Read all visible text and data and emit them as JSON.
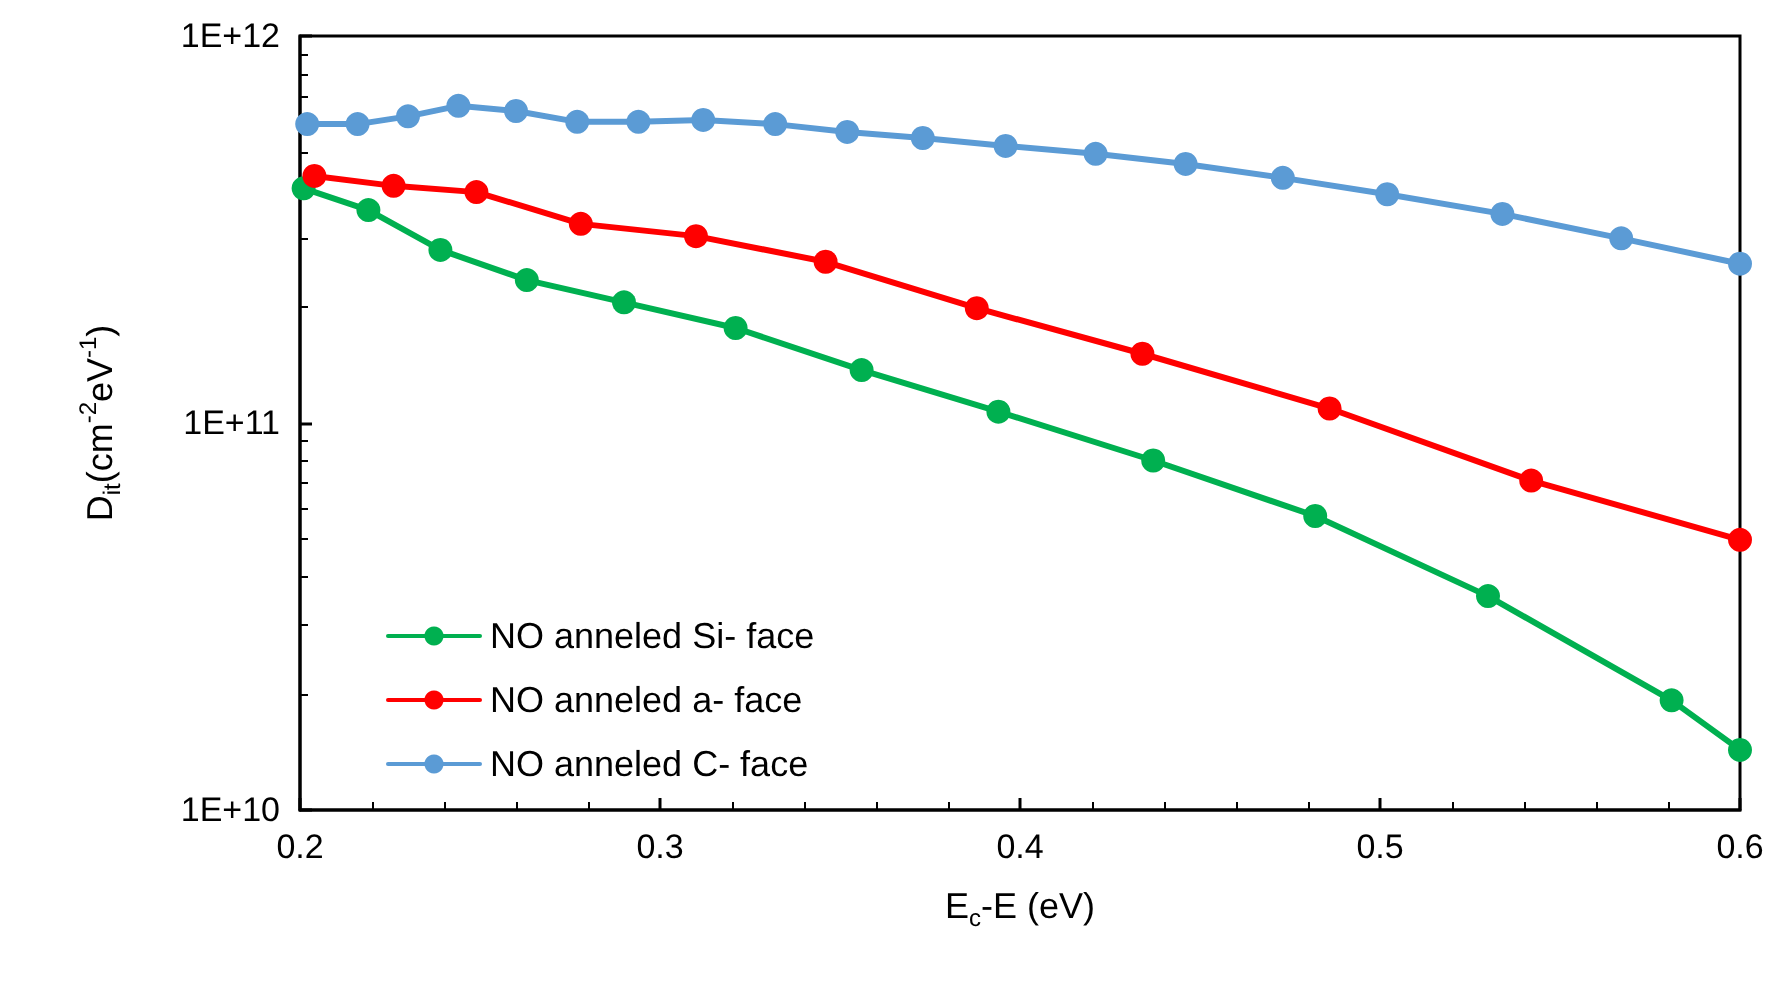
{
  "chart_data": {
    "type": "line",
    "xlabel": "E$_{c}$-E (eV)",
    "ylabel": "D$_{it}$(cm$^{-2}$eV$^{-1}$)",
    "log": "y",
    "grid": false,
    "legend": "bottom left",
    "marker": "circle",
    "line_style": "solid",
    "xlim": [
      0.2,
      0.6
    ],
    "xticks": [
      0.2,
      0.3,
      0.4,
      0.5,
      0.6
    ],
    "ylim": [
      10000000000.0,
      1000000000000.0
    ],
    "yticks": [
      {
        "value": 10000000000.0,
        "label": "1E+10"
      },
      {
        "value": 100000000000.0,
        "label": "1E+11"
      },
      {
        "value": 1000000000000.0,
        "label": "1E+12"
      }
    ],
    "series": [
      {
        "name": "NO anneled Si- face",
        "color": "#00b050",
        "x": [
          0.201,
          0.219,
          0.239,
          0.263,
          0.29,
          0.321,
          0.356,
          0.394,
          0.437,
          0.482,
          0.53,
          0.581,
          0.6
        ],
        "values": [
          404000000000.0,
          355000000000.0,
          280000000000.0,
          234000000000.0,
          205000000000.0,
          176000000000.0,
          137000000000.0,
          107000000000.0,
          80000000000.0,
          57500000000.0,
          35700000000.0,
          19200000000.0,
          14300000000.0
        ]
      },
      {
        "name": "NO anneled a- face",
        "color": "#ff0000",
        "x": [
          0.204,
          0.226,
          0.249,
          0.278,
          0.31,
          0.346,
          0.388,
          0.434,
          0.486,
          0.542,
          0.6
        ],
        "values": [
          435000000000.0,
          410000000000.0,
          395000000000.0,
          327000000000.0,
          304000000000.0,
          261000000000.0,
          198000000000.0,
          151000000000.0,
          109000000000.0,
          71000000000.0,
          49900000000.0
        ]
      },
      {
        "name": "NO anneled C- face",
        "color": "#5b9bd5",
        "x": [
          0.202,
          0.216,
          0.23,
          0.244,
          0.26,
          0.277,
          0.294,
          0.312,
          0.332,
          0.352,
          0.373,
          0.396,
          0.421,
          0.446,
          0.473,
          0.502,
          0.534,
          0.567,
          0.6
        ],
        "values": [
          592000000000.0,
          592000000000.0,
          620000000000.0,
          660000000000.0,
          640000000000.0,
          600000000000.0,
          600000000000.0,
          607000000000.0,
          592000000000.0,
          565000000000.0,
          545000000000.0,
          520000000000.0,
          496000000000.0,
          467000000000.0,
          430000000000.0,
          390000000000.0,
          347000000000.0,
          300000000000.0,
          258000000000.0
        ]
      }
    ]
  }
}
